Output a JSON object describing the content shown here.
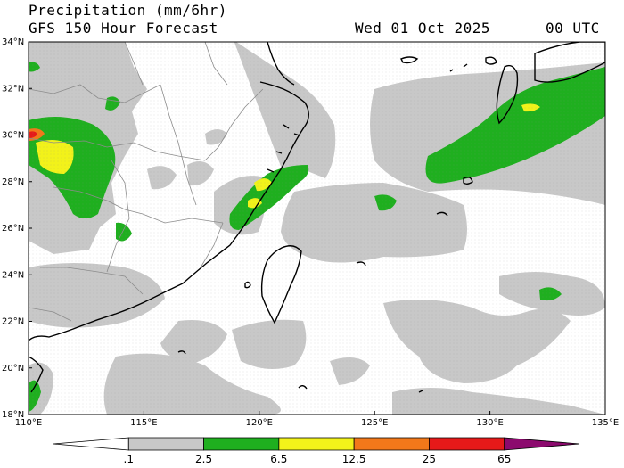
{
  "title": {
    "line1": "Precipitation (mm/6hr)",
    "line2": "GFS 150 Hour Forecast",
    "date": "Wed 01 Oct 2025",
    "time": "00 UTC"
  },
  "map": {
    "lon_range": [
      110,
      135
    ],
    "lat_range": [
      18,
      34
    ],
    "lon_ticks": [
      "110°E",
      "115°E",
      "120°E",
      "125°E",
      "130°E",
      "135°E"
    ],
    "lat_ticks": [
      "18°N",
      "20°N",
      "22°N",
      "24°N",
      "26°N",
      "28°N",
      "30°N",
      "32°N",
      "34°N"
    ]
  },
  "colorbar": {
    "labels": [
      ".1",
      "2.5",
      "6.5",
      "12.5",
      "25",
      "65"
    ],
    "colors": [
      "#ffffff",
      "#c8c8c8",
      "#1faf1f",
      "#f2f21a",
      "#f2781a",
      "#e61919",
      "#8c0a6e"
    ]
  }
}
